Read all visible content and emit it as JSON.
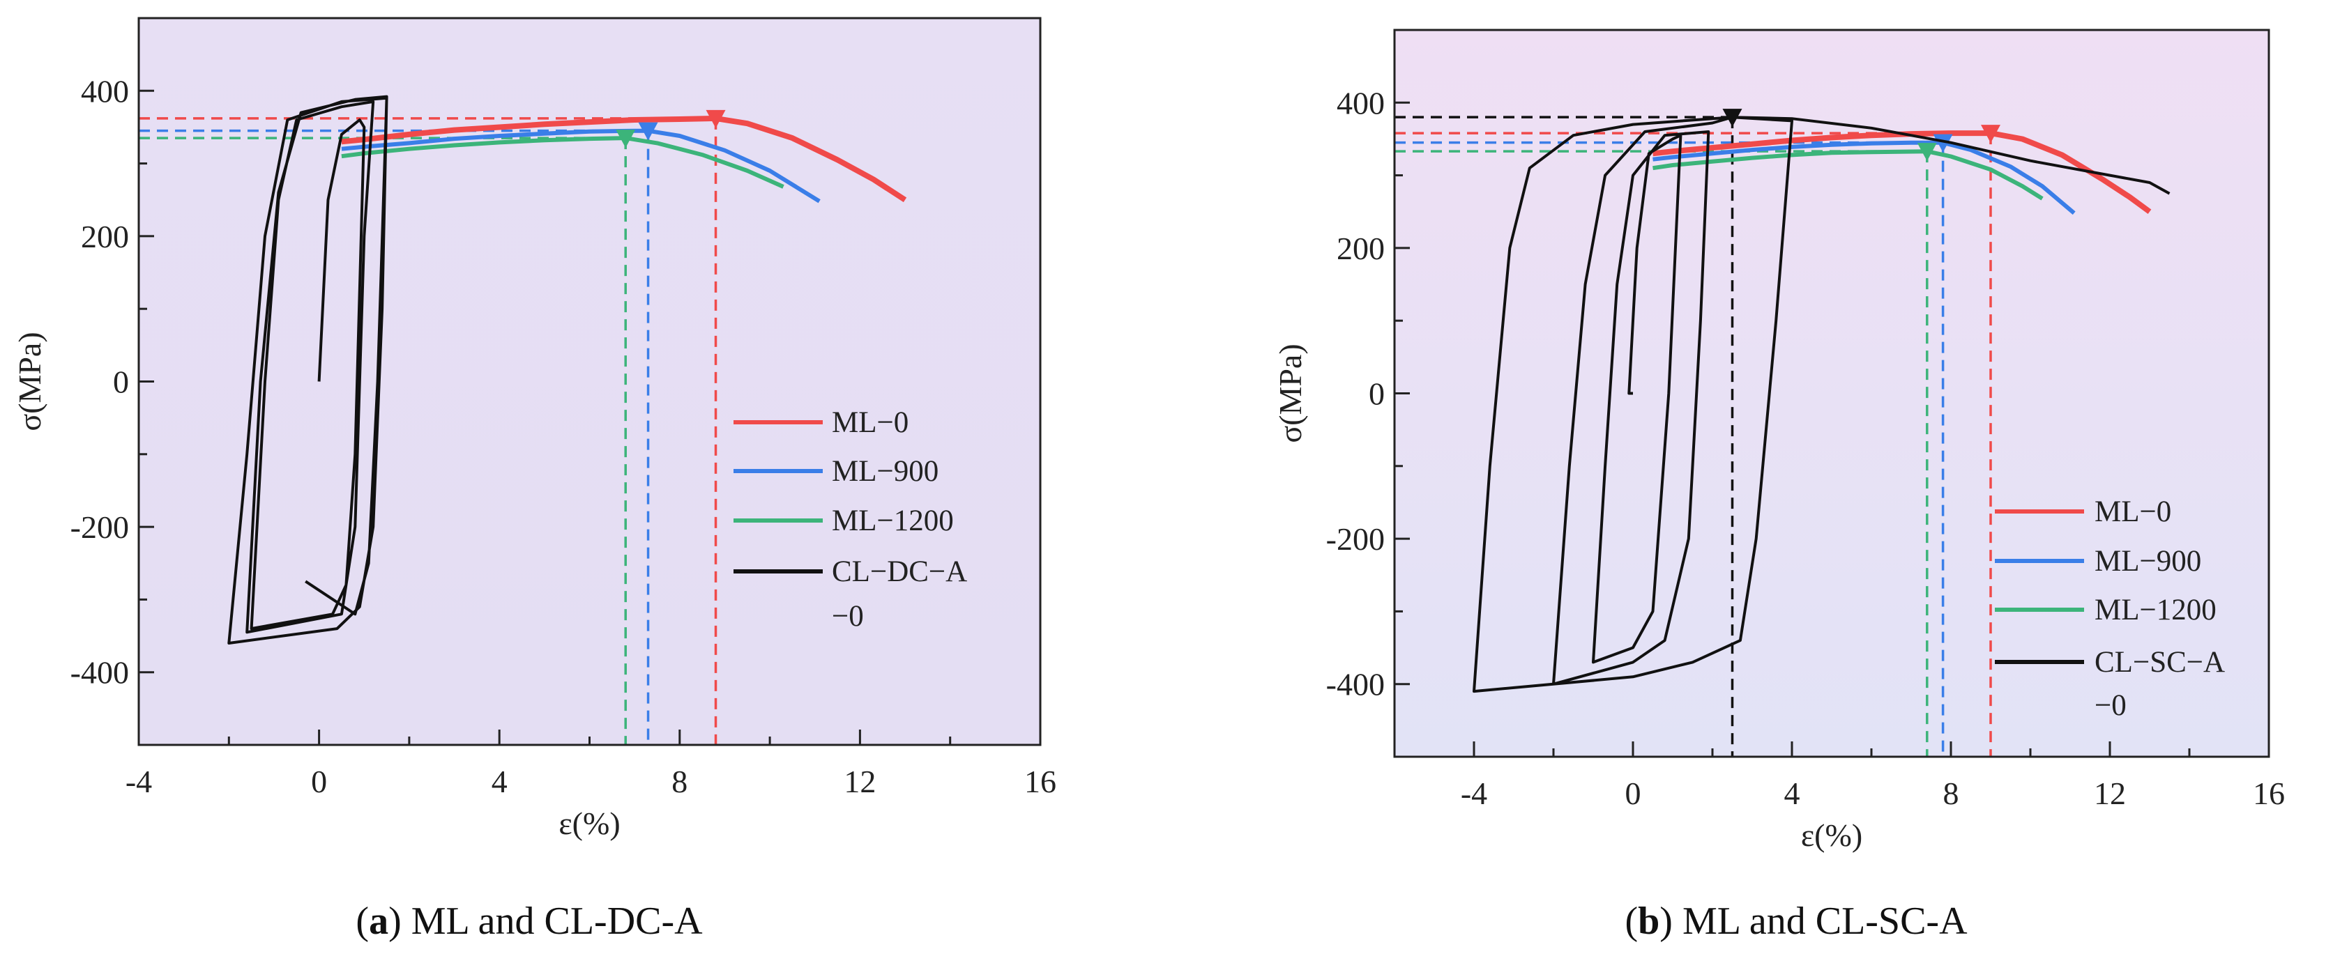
{
  "colors": {
    "ML-0": "#f04a4a",
    "ML-900": "#3a7ee8",
    "ML-1200": "#3cb47a",
    "CL": "#111111"
  },
  "chart_data": [
    {
      "type": "line",
      "panel_label": "a",
      "caption": "ML and CL-DC-A",
      "xlabel": "ε(%)",
      "ylabel": "σ(MPa)",
      "xlim": [
        -4,
        16
      ],
      "ylim": [
        -500,
        500
      ],
      "xticks": [
        -4,
        0,
        4,
        8,
        12,
        16
      ],
      "yticks": [
        -400,
        -200,
        0,
        200,
        400
      ],
      "grid": false,
      "legend_position": "bottom-right",
      "series": [
        {
          "name": "ML−0",
          "color_key": "ML-0",
          "peak": [
            8.8,
            362
          ],
          "points": [
            [
              0.5,
              330
            ],
            [
              1,
              333
            ],
            [
              2,
              340
            ],
            [
              3,
              346
            ],
            [
              4,
              350
            ],
            [
              5,
              354
            ],
            [
              6,
              357
            ],
            [
              7,
              360
            ],
            [
              8,
              361
            ],
            [
              8.8,
              362
            ],
            [
              9.5,
              355
            ],
            [
              10.5,
              335
            ],
            [
              11.5,
              305
            ],
            [
              12.3,
              278
            ],
            [
              13,
              250
            ]
          ]
        },
        {
          "name": "ML−900",
          "color_key": "ML-900",
          "peak": [
            7.3,
            345
          ],
          "points": [
            [
              0.5,
              320
            ],
            [
              1,
              323
            ],
            [
              2,
              328
            ],
            [
              3,
              334
            ],
            [
              4,
              338
            ],
            [
              5,
              341
            ],
            [
              6,
              344
            ],
            [
              7,
              345
            ],
            [
              7.3,
              345
            ],
            [
              8,
              338
            ],
            [
              9,
              318
            ],
            [
              10,
              290
            ],
            [
              11.1,
              248
            ]
          ]
        },
        {
          "name": "ML−1200",
          "color_key": "ML-1200",
          "peak": [
            6.8,
            335
          ],
          "points": [
            [
              0.5,
              310
            ],
            [
              1,
              314
            ],
            [
              2,
              320
            ],
            [
              3,
              325
            ],
            [
              4,
              329
            ],
            [
              5,
              332
            ],
            [
              6,
              334
            ],
            [
              6.8,
              335
            ],
            [
              7.5,
              328
            ],
            [
              8.5,
              312
            ],
            [
              9.5,
              290
            ],
            [
              10.3,
              268
            ]
          ]
        },
        {
          "name": "CL−DC−A −0",
          "name_lines": [
            "CL−DC−A",
            "−0"
          ],
          "color_key": "CL",
          "peak": null,
          "points": [
            [
              0,
              0
            ],
            [
              0.2,
              250
            ],
            [
              0.5,
              340
            ],
            [
              0.9,
              360
            ],
            [
              1.0,
              350
            ],
            [
              0.8,
              -100
            ],
            [
              0.6,
              -280
            ],
            [
              0.3,
              -320
            ],
            [
              -1.5,
              -340
            ],
            [
              -1.2,
              0
            ],
            [
              -0.9,
              250
            ],
            [
              -0.5,
              360
            ],
            [
              0.5,
              378
            ],
            [
              1.2,
              385
            ],
            [
              1.0,
              200
            ],
            [
              0.8,
              -200
            ],
            [
              0.5,
              -320
            ],
            [
              -1.6,
              -345
            ],
            [
              -1.3,
              0
            ],
            [
              -0.9,
              260
            ],
            [
              -0.4,
              370
            ],
            [
              0.8,
              388
            ],
            [
              1.5,
              392
            ],
            [
              1.4,
              100
            ],
            [
              1.2,
              -200
            ],
            [
              0.9,
              -310
            ],
            [
              0.4,
              -340
            ],
            [
              -2,
              -360
            ],
            [
              -1.6,
              -100
            ],
            [
              -1.2,
              200
            ],
            [
              -0.7,
              360
            ],
            [
              0.5,
              385
            ],
            [
              1.5,
              390
            ],
            [
              1.3,
              0
            ],
            [
              1.1,
              -250
            ],
            [
              0.8,
              -320
            ],
            [
              -0.3,
              -275
            ]
          ]
        }
      ]
    },
    {
      "type": "line",
      "panel_label": "b",
      "caption": "ML and CL-SC-A",
      "xlabel": "ε(%)",
      "ylabel": "σ(MPa)",
      "xlim": [
        -6,
        16
      ],
      "ylim": [
        -500,
        500
      ],
      "xticks": [
        -4,
        0,
        4,
        8,
        12,
        16
      ],
      "yticks": [
        -400,
        -200,
        0,
        200,
        400
      ],
      "grid": false,
      "legend_position": "bottom-right",
      "series": [
        {
          "name": "ML−0",
          "color_key": "ML-0",
          "peak": [
            9.0,
            358
          ],
          "points": [
            [
              0.5,
              330
            ],
            [
              1,
              333
            ],
            [
              2,
              338
            ],
            [
              3,
              343
            ],
            [
              4,
              348
            ],
            [
              5,
              352
            ],
            [
              6,
              355
            ],
            [
              7,
              357
            ],
            [
              8,
              358
            ],
            [
              9,
              358
            ],
            [
              9.8,
              350
            ],
            [
              10.8,
              328
            ],
            [
              11.8,
              295
            ],
            [
              12.5,
              270
            ],
            [
              13,
              250
            ]
          ]
        },
        {
          "name": "ML−900",
          "color_key": "ML-900",
          "peak": [
            7.8,
            345
          ],
          "points": [
            [
              0.5,
              322
            ],
            [
              1,
              325
            ],
            [
              2,
              330
            ],
            [
              3,
              335
            ],
            [
              4,
              339
            ],
            [
              5,
              342
            ],
            [
              6,
              344
            ],
            [
              7,
              345
            ],
            [
              7.8,
              345
            ],
            [
              8.5,
              335
            ],
            [
              9.5,
              312
            ],
            [
              10.3,
              285
            ],
            [
              11.1,
              248
            ]
          ]
        },
        {
          "name": "ML−1200",
          "color_key": "ML-1200",
          "peak": [
            7.4,
            333
          ],
          "points": [
            [
              0.5,
              310
            ],
            [
              1,
              314
            ],
            [
              2,
              319
            ],
            [
              3,
              324
            ],
            [
              4,
              328
            ],
            [
              5,
              331
            ],
            [
              6,
              332
            ],
            [
              7.4,
              333
            ],
            [
              8,
              326
            ],
            [
              9,
              308
            ],
            [
              9.8,
              285
            ],
            [
              10.3,
              268
            ]
          ]
        },
        {
          "name": "CL−SC−A −0",
          "name_lines": [
            "CL−SC−A",
            "−0"
          ],
          "color_key": "CL",
          "peak": [
            2.5,
            380
          ],
          "points": [
            [
              0,
              0
            ],
            [
              -0.1,
              0
            ],
            [
              0.1,
              200
            ],
            [
              0.4,
              330
            ],
            [
              1,
              350
            ],
            [
              1.2,
              355
            ],
            [
              0.9,
              0
            ],
            [
              0.5,
              -300
            ],
            [
              0,
              -350
            ],
            [
              -1,
              -370
            ],
            [
              -0.7,
              -100
            ],
            [
              -0.4,
              150
            ],
            [
              0,
              300
            ],
            [
              0.8,
              355
            ],
            [
              1.9,
              360
            ],
            [
              1.7,
              100
            ],
            [
              1.4,
              -200
            ],
            [
              0.8,
              -340
            ],
            [
              0,
              -370
            ],
            [
              -2,
              -400
            ],
            [
              -1.6,
              -100
            ],
            [
              -1.2,
              150
            ],
            [
              -0.7,
              300
            ],
            [
              0.3,
              360
            ],
            [
              2,
              372
            ],
            [
              2.5,
              380
            ],
            [
              4,
              375
            ],
            [
              3.6,
              100
            ],
            [
              3.1,
              -200
            ],
            [
              2.7,
              -340
            ],
            [
              1.5,
              -370
            ],
            [
              0,
              -390
            ],
            [
              -4,
              -410
            ],
            [
              -3.6,
              -100
            ],
            [
              -3.1,
              200
            ],
            [
              -2.6,
              310
            ],
            [
              -1.5,
              355
            ],
            [
              0,
              370
            ],
            [
              2.5,
              380
            ],
            [
              4,
              378
            ],
            [
              6,
              365
            ],
            [
              8,
              345
            ],
            [
              10,
              320
            ],
            [
              12,
              300
            ],
            [
              13,
              290
            ],
            [
              13.5,
              275
            ]
          ]
        }
      ]
    }
  ]
}
